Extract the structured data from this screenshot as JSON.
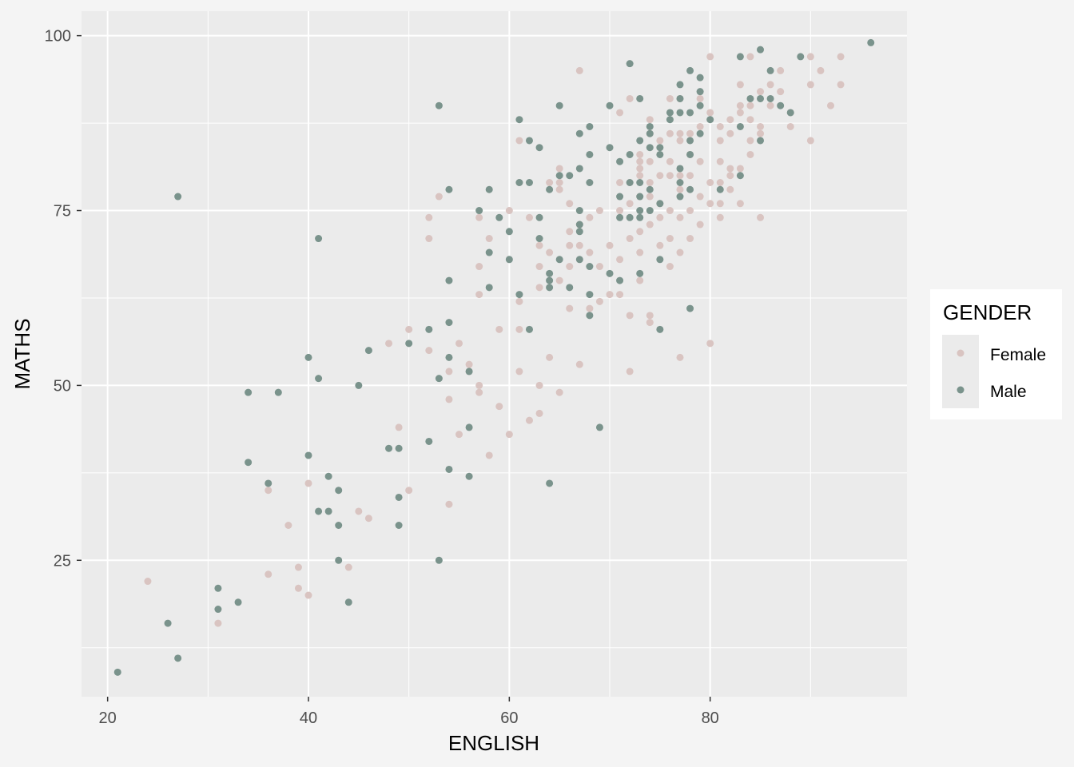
{
  "chart_data": {
    "type": "scatter",
    "xlabel": "ENGLISH",
    "ylabel": "MATHS",
    "xlim": [
      17.4,
      99.6
    ],
    "ylim": [
      5.5,
      103.5
    ],
    "x_ticks": [
      20,
      40,
      60,
      80
    ],
    "x_minor": [
      30,
      50,
      70,
      90
    ],
    "y_ticks": [
      25,
      50,
      75,
      100
    ],
    "y_minor": [
      12.5,
      37.5,
      62.5,
      87.5
    ],
    "grid": true,
    "legend": {
      "title": "GENDER",
      "position": "right"
    },
    "series": [
      {
        "name": "Female",
        "color": "#d9c4c1",
        "points": [
          [
            24,
            22
          ],
          [
            31,
            16
          ],
          [
            36,
            35
          ],
          [
            36,
            23
          ],
          [
            38,
            30
          ],
          [
            39,
            24
          ],
          [
            39,
            21
          ],
          [
            40,
            36
          ],
          [
            40,
            20
          ],
          [
            44,
            24
          ],
          [
            45,
            32
          ],
          [
            46,
            31
          ],
          [
            48,
            56
          ],
          [
            49,
            44
          ],
          [
            50,
            58
          ],
          [
            50,
            35
          ],
          [
            52,
            74
          ],
          [
            52,
            71
          ],
          [
            52,
            55
          ],
          [
            53,
            77
          ],
          [
            54,
            52
          ],
          [
            54,
            48
          ],
          [
            54,
            33
          ],
          [
            55,
            56
          ],
          [
            55,
            43
          ],
          [
            56,
            53
          ],
          [
            56,
            52
          ],
          [
            57,
            74
          ],
          [
            57,
            67
          ],
          [
            57,
            63
          ],
          [
            57,
            50
          ],
          [
            57,
            49
          ],
          [
            58,
            71
          ],
          [
            58,
            40
          ],
          [
            59,
            58
          ],
          [
            59,
            47
          ],
          [
            60,
            75
          ],
          [
            60,
            43
          ],
          [
            61,
            85
          ],
          [
            61,
            79
          ],
          [
            61,
            62
          ],
          [
            61,
            58
          ],
          [
            61,
            52
          ],
          [
            62,
            74
          ],
          [
            62,
            45
          ],
          [
            63,
            70
          ],
          [
            63,
            67
          ],
          [
            63,
            64
          ],
          [
            63,
            50
          ],
          [
            63,
            46
          ],
          [
            64,
            79
          ],
          [
            64,
            69
          ],
          [
            64,
            54
          ],
          [
            65,
            81
          ],
          [
            65,
            79
          ],
          [
            65,
            78
          ],
          [
            65,
            65
          ],
          [
            65,
            49
          ],
          [
            66,
            76
          ],
          [
            66,
            72
          ],
          [
            66,
            70
          ],
          [
            66,
            67
          ],
          [
            66,
            61
          ],
          [
            67,
            95
          ],
          [
            67,
            73
          ],
          [
            67,
            70
          ],
          [
            67,
            53
          ],
          [
            68,
            74
          ],
          [
            68,
            69
          ],
          [
            68,
            61
          ],
          [
            69,
            75
          ],
          [
            69,
            67
          ],
          [
            69,
            62
          ],
          [
            70,
            70
          ],
          [
            70,
            63
          ],
          [
            71,
            89
          ],
          [
            71,
            79
          ],
          [
            71,
            75
          ],
          [
            71,
            68
          ],
          [
            71,
            63
          ],
          [
            72,
            91
          ],
          [
            72,
            79
          ],
          [
            72,
            76
          ],
          [
            72,
            71
          ],
          [
            72,
            60
          ],
          [
            72,
            52
          ],
          [
            73,
            83
          ],
          [
            73,
            82
          ],
          [
            73,
            81
          ],
          [
            73,
            80
          ],
          [
            73,
            77
          ],
          [
            73,
            72
          ],
          [
            73,
            69
          ],
          [
            73,
            65
          ],
          [
            74,
            88
          ],
          [
            74,
            86
          ],
          [
            74,
            82
          ],
          [
            74,
            79
          ],
          [
            74,
            77
          ],
          [
            74,
            73
          ],
          [
            74,
            60
          ],
          [
            74,
            59
          ],
          [
            75,
            85
          ],
          [
            75,
            80
          ],
          [
            75,
            76
          ],
          [
            75,
            74
          ],
          [
            75,
            70
          ],
          [
            76,
            91
          ],
          [
            76,
            86
          ],
          [
            76,
            82
          ],
          [
            76,
            80
          ],
          [
            76,
            75
          ],
          [
            76,
            71
          ],
          [
            76,
            67
          ],
          [
            77,
            91
          ],
          [
            77,
            86
          ],
          [
            77,
            85
          ],
          [
            77,
            80
          ],
          [
            77,
            78
          ],
          [
            77,
            74
          ],
          [
            77,
            69
          ],
          [
            77,
            54
          ],
          [
            78,
            86
          ],
          [
            78,
            83
          ],
          [
            78,
            80
          ],
          [
            78,
            75
          ],
          [
            78,
            71
          ],
          [
            79,
            91
          ],
          [
            79,
            87
          ],
          [
            79,
            82
          ],
          [
            79,
            77
          ],
          [
            79,
            73
          ],
          [
            80,
            97
          ],
          [
            80,
            89
          ],
          [
            80,
            79
          ],
          [
            80,
            76
          ],
          [
            80,
            56
          ],
          [
            81,
            87
          ],
          [
            81,
            85
          ],
          [
            81,
            82
          ],
          [
            81,
            79
          ],
          [
            81,
            76
          ],
          [
            81,
            74
          ],
          [
            82,
            88
          ],
          [
            82,
            86
          ],
          [
            82,
            81
          ],
          [
            82,
            80
          ],
          [
            82,
            78
          ],
          [
            83,
            93
          ],
          [
            83,
            90
          ],
          [
            83,
            89
          ],
          [
            83,
            81
          ],
          [
            83,
            76
          ],
          [
            84,
            97
          ],
          [
            84,
            90
          ],
          [
            84,
            88
          ],
          [
            84,
            85
          ],
          [
            84,
            83
          ],
          [
            85,
            92
          ],
          [
            85,
            87
          ],
          [
            85,
            86
          ],
          [
            85,
            74
          ],
          [
            86,
            93
          ],
          [
            86,
            90
          ],
          [
            87,
            95
          ],
          [
            87,
            92
          ],
          [
            88,
            89
          ],
          [
            88,
            87
          ],
          [
            90,
            97
          ],
          [
            90,
            93
          ],
          [
            90,
            85
          ],
          [
            91,
            95
          ],
          [
            92,
            90
          ],
          [
            93,
            97
          ],
          [
            93,
            93
          ]
        ]
      },
      {
        "name": "Male",
        "color": "#7a938c",
        "points": [
          [
            21,
            9
          ],
          [
            26,
            16
          ],
          [
            27,
            77
          ],
          [
            27,
            11
          ],
          [
            31,
            21
          ],
          [
            31,
            18
          ],
          [
            33,
            19
          ],
          [
            34,
            49
          ],
          [
            34,
            39
          ],
          [
            36,
            36
          ],
          [
            37,
            49
          ],
          [
            40,
            54
          ],
          [
            40,
            40
          ],
          [
            41,
            71
          ],
          [
            41,
            51
          ],
          [
            41,
            32
          ],
          [
            42,
            37
          ],
          [
            42,
            32
          ],
          [
            43,
            35
          ],
          [
            43,
            30
          ],
          [
            43,
            25
          ],
          [
            44,
            19
          ],
          [
            45,
            50
          ],
          [
            46,
            55
          ],
          [
            48,
            41
          ],
          [
            49,
            41
          ],
          [
            49,
            34
          ],
          [
            49,
            30
          ],
          [
            50,
            56
          ],
          [
            52,
            58
          ],
          [
            52,
            42
          ],
          [
            53,
            90
          ],
          [
            53,
            51
          ],
          [
            53,
            25
          ],
          [
            54,
            78
          ],
          [
            54,
            65
          ],
          [
            54,
            59
          ],
          [
            54,
            54
          ],
          [
            54,
            38
          ],
          [
            56,
            52
          ],
          [
            56,
            44
          ],
          [
            56,
            37
          ],
          [
            57,
            75
          ],
          [
            58,
            78
          ],
          [
            58,
            69
          ],
          [
            58,
            64
          ],
          [
            59,
            74
          ],
          [
            60,
            72
          ],
          [
            60,
            68
          ],
          [
            61,
            88
          ],
          [
            61,
            79
          ],
          [
            61,
            63
          ],
          [
            62,
            85
          ],
          [
            62,
            79
          ],
          [
            62,
            58
          ],
          [
            63,
            84
          ],
          [
            63,
            74
          ],
          [
            63,
            71
          ],
          [
            64,
            78
          ],
          [
            64,
            66
          ],
          [
            64,
            65
          ],
          [
            64,
            64
          ],
          [
            64,
            36
          ],
          [
            65,
            90
          ],
          [
            65,
            80
          ],
          [
            65,
            68
          ],
          [
            66,
            80
          ],
          [
            66,
            64
          ],
          [
            67,
            86
          ],
          [
            67,
            81
          ],
          [
            67,
            75
          ],
          [
            67,
            73
          ],
          [
            67,
            72
          ],
          [
            67,
            68
          ],
          [
            68,
            87
          ],
          [
            68,
            83
          ],
          [
            68,
            79
          ],
          [
            68,
            67
          ],
          [
            68,
            63
          ],
          [
            68,
            60
          ],
          [
            69,
            44
          ],
          [
            70,
            90
          ],
          [
            70,
            84
          ],
          [
            70,
            66
          ],
          [
            71,
            82
          ],
          [
            71,
            77
          ],
          [
            71,
            74
          ],
          [
            71,
            65
          ],
          [
            72,
            96
          ],
          [
            72,
            83
          ],
          [
            72,
            79
          ],
          [
            72,
            74
          ],
          [
            73,
            91
          ],
          [
            73,
            85
          ],
          [
            73,
            79
          ],
          [
            73,
            77
          ],
          [
            73,
            75
          ],
          [
            73,
            74
          ],
          [
            73,
            66
          ],
          [
            74,
            87
          ],
          [
            74,
            86
          ],
          [
            74,
            84
          ],
          [
            74,
            78
          ],
          [
            74,
            75
          ],
          [
            75,
            84
          ],
          [
            75,
            83
          ],
          [
            75,
            76
          ],
          [
            75,
            68
          ],
          [
            75,
            58
          ],
          [
            76,
            89
          ],
          [
            76,
            88
          ],
          [
            77,
            93
          ],
          [
            77,
            91
          ],
          [
            77,
            89
          ],
          [
            77,
            81
          ],
          [
            77,
            79
          ],
          [
            77,
            77
          ],
          [
            78,
            95
          ],
          [
            78,
            89
          ],
          [
            78,
            85
          ],
          [
            78,
            83
          ],
          [
            78,
            78
          ],
          [
            78,
            61
          ],
          [
            79,
            94
          ],
          [
            79,
            92
          ],
          [
            79,
            90
          ],
          [
            79,
            86
          ],
          [
            80,
            88
          ],
          [
            81,
            78
          ],
          [
            83,
            97
          ],
          [
            83,
            87
          ],
          [
            83,
            80
          ],
          [
            84,
            91
          ],
          [
            85,
            98
          ],
          [
            85,
            91
          ],
          [
            85,
            85
          ],
          [
            86,
            95
          ],
          [
            86,
            91
          ],
          [
            87,
            90
          ],
          [
            88,
            89
          ],
          [
            89,
            97
          ],
          [
            96,
            99
          ]
        ]
      }
    ]
  }
}
